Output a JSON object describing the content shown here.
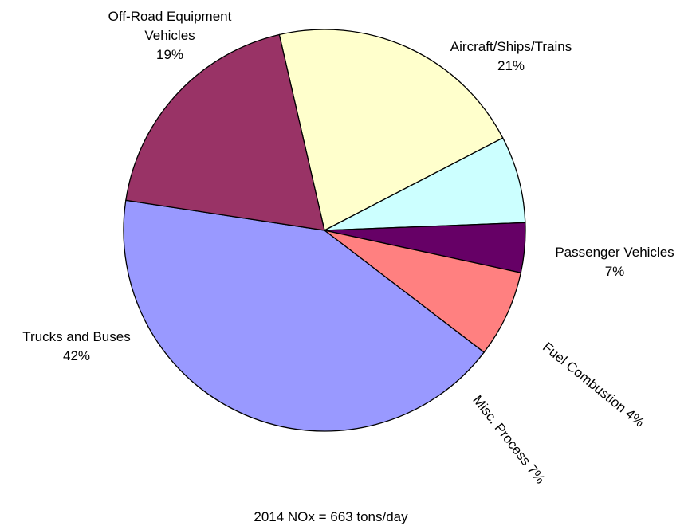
{
  "chart_data": {
    "type": "pie",
    "title": "",
    "caption": "2014 NOx = 663 tons/day",
    "start_angle_deg": -13,
    "direction": "clockwise",
    "slices": [
      {
        "name": "Aircraft/Ships/Trains",
        "label_lines": [
          "Aircraft/Ships/Trains",
          "21%"
        ],
        "value": 21,
        "color": "#FFFFCC"
      },
      {
        "name": "Passenger Vehicles",
        "label_lines": [
          "Passenger Vehicles",
          "7%"
        ],
        "value": 7,
        "color": "#CCFFFF"
      },
      {
        "name": "Fuel Combustion",
        "label_lines": [
          "Fuel Combustion 4%"
        ],
        "value": 4,
        "color": "#660066"
      },
      {
        "name": "Misc. Process",
        "label_lines": [
          "Misc. Process 7%"
        ],
        "value": 7,
        "color": "#FF8080"
      },
      {
        "name": "Trucks and Buses",
        "label_lines": [
          "Trucks and Buses",
          "42%"
        ],
        "value": 42,
        "color": "#9999FF"
      },
      {
        "name": "Off-Road Equipment Vehicles",
        "label_lines": [
          "Off-Road Equipment",
          "Vehicles",
          "19%"
        ],
        "value": 19,
        "color": "#993366"
      }
    ]
  }
}
